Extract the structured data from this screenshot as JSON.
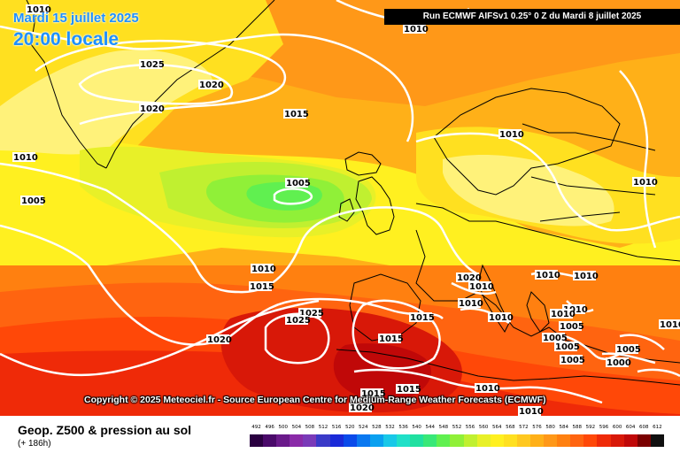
{
  "header": {
    "date": "Mardi 15 juillet 2025",
    "time": "20:00 locale",
    "run": "Run ECMWF AIFSv1 0.25° 0 Z du Mardi 8 juillet 2025"
  },
  "copyright": "Copyright © 2025 Meteociel.fr - Source European Centre for Medium-Range Weather Forecasts (ECMWF)",
  "footer": {
    "title": "Geop. Z500 & pression au sol",
    "subtitle": "(+ 186h)"
  },
  "legend": {
    "values": [
      "492",
      "496",
      "500",
      "504",
      "508",
      "512",
      "516",
      "520",
      "524",
      "528",
      "532",
      "536",
      "540",
      "544",
      "548",
      "552",
      "556",
      "560",
      "564",
      "568",
      "572",
      "576",
      "580",
      "584",
      "588",
      "592",
      "596",
      "600",
      "604",
      "608",
      "612"
    ],
    "colors": [
      "#2a0040",
      "#4a0a6a",
      "#6a1a8a",
      "#8a2aa8",
      "#7a3ab8",
      "#3a3ac8",
      "#1a2ad8",
      "#0a4aea",
      "#0a78f0",
      "#0aa0f0",
      "#18c8e8",
      "#20e0c8",
      "#20e0a0",
      "#38e878",
      "#60f050",
      "#90f038",
      "#c0f030",
      "#e8f028",
      "#fff020",
      "#ffe020",
      "#ffc820",
      "#ffb018",
      "#ff9818",
      "#ff8010",
      "#ff6410",
      "#ff4808",
      "#ef2a08",
      "#d81808",
      "#c00808",
      "#7a0000",
      "#101010"
    ]
  },
  "pressure_labels": [
    {
      "text": "1010"
    },
    {
      "text": "1010"
    },
    {
      "text": "1025"
    },
    {
      "text": "1020"
    },
    {
      "text": "1020"
    },
    {
      "text": "1015"
    },
    {
      "text": "1010"
    },
    {
      "text": "1010"
    },
    {
      "text": "1005"
    },
    {
      "text": "1005"
    },
    {
      "text": "1010"
    },
    {
      "text": "1010"
    },
    {
      "text": "1015"
    },
    {
      "text": "1020"
    },
    {
      "text": "1010"
    },
    {
      "text": "1010"
    },
    {
      "text": "1025"
    },
    {
      "text": "1025"
    },
    {
      "text": "1020"
    },
    {
      "text": "1015"
    },
    {
      "text": "1015"
    },
    {
      "text": "1010"
    },
    {
      "text": "1010"
    },
    {
      "text": "1010"
    },
    {
      "text": "1010"
    },
    {
      "text": "1010"
    },
    {
      "text": "1010"
    },
    {
      "text": "1005"
    },
    {
      "text": "1005"
    },
    {
      "text": "1005"
    },
    {
      "text": "1005"
    },
    {
      "text": "1005"
    },
    {
      "text": "1000"
    },
    {
      "text": "1015"
    },
    {
      "text": "1015"
    },
    {
      "text": "1010"
    },
    {
      "text": "1010"
    },
    {
      "text": "1020"
    }
  ]
}
